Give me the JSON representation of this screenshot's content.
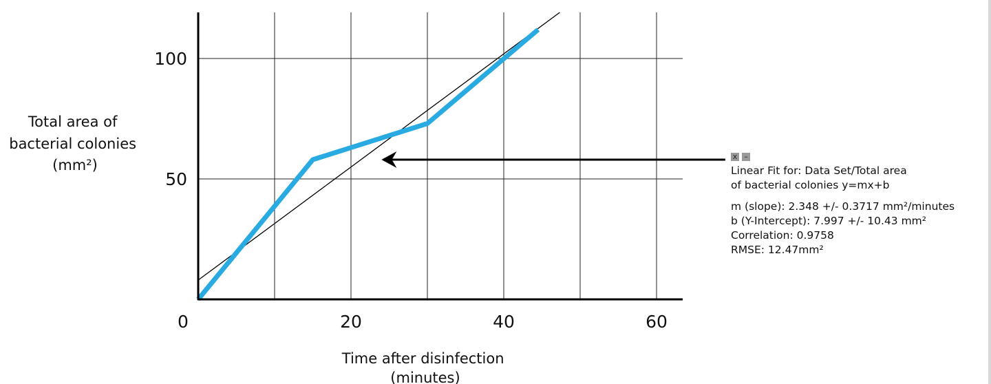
{
  "chart_data": {
    "type": "line",
    "ylabel_lines": [
      "Total area of",
      "bacterial colonies",
      "(mm²)"
    ],
    "xlabel_lines": [
      "Time after disinfection",
      "(minutes)"
    ],
    "xlim": [
      0,
      64
    ],
    "ylim": [
      0,
      120
    ],
    "x_ticks": [
      0,
      20,
      40,
      60
    ],
    "y_ticks": [
      50,
      100
    ],
    "x_grid": [
      10,
      20,
      30,
      40,
      50,
      60
    ],
    "y_grid": [
      50,
      100
    ],
    "grid": true,
    "series": [
      {
        "color": "#29abe2",
        "x": [
          0,
          15,
          30,
          44.5
        ],
        "y": [
          0,
          58,
          73,
          112
        ]
      }
    ],
    "fit_line": {
      "slope": 2.348,
      "intercept": 7.997,
      "color": "#000000"
    },
    "annotation_arrow": {
      "from": [
        69,
        58
      ],
      "to": [
        24,
        58
      ]
    }
  },
  "fit_box": {
    "controls": [
      "x",
      "–"
    ],
    "title_line1": "Linear Fit for: Data Set/Total area",
    "title_line2": "of bacterial colonies y=mx+b",
    "slope": "m (slope): 2.348 +/- 0.3717 mm²/minutes",
    "intercept": "b (Y-Intercept): 7.997 +/- 10.43 mm²",
    "correlation": "Correlation: 0.9758",
    "rmse": "RMSE: 12.47mm²"
  }
}
